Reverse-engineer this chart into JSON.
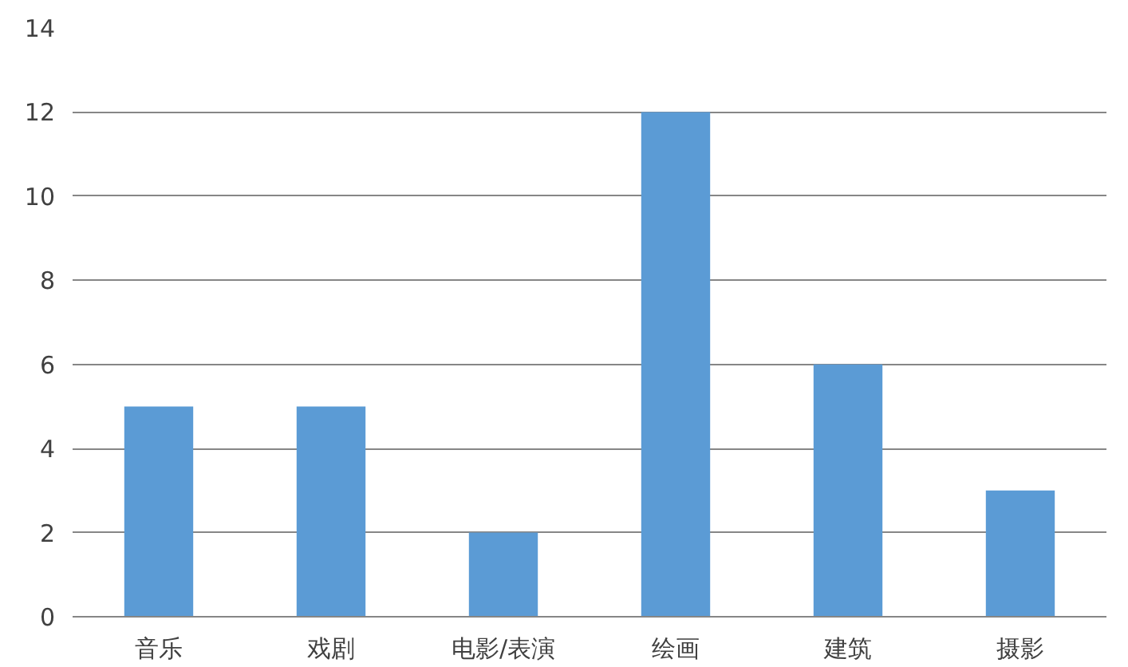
{
  "chart_data": {
    "type": "bar",
    "categories": [
      "音乐",
      "戏剧",
      "电影/表演",
      "绘画",
      "建筑",
      "摄影"
    ],
    "values": [
      5,
      5,
      2,
      12,
      6,
      3
    ],
    "color": "#5b9bd5",
    "ylim": [
      0,
      14
    ],
    "yticks": [
      0,
      2,
      4,
      6,
      8,
      10,
      12,
      14
    ],
    "grid": "y"
  }
}
